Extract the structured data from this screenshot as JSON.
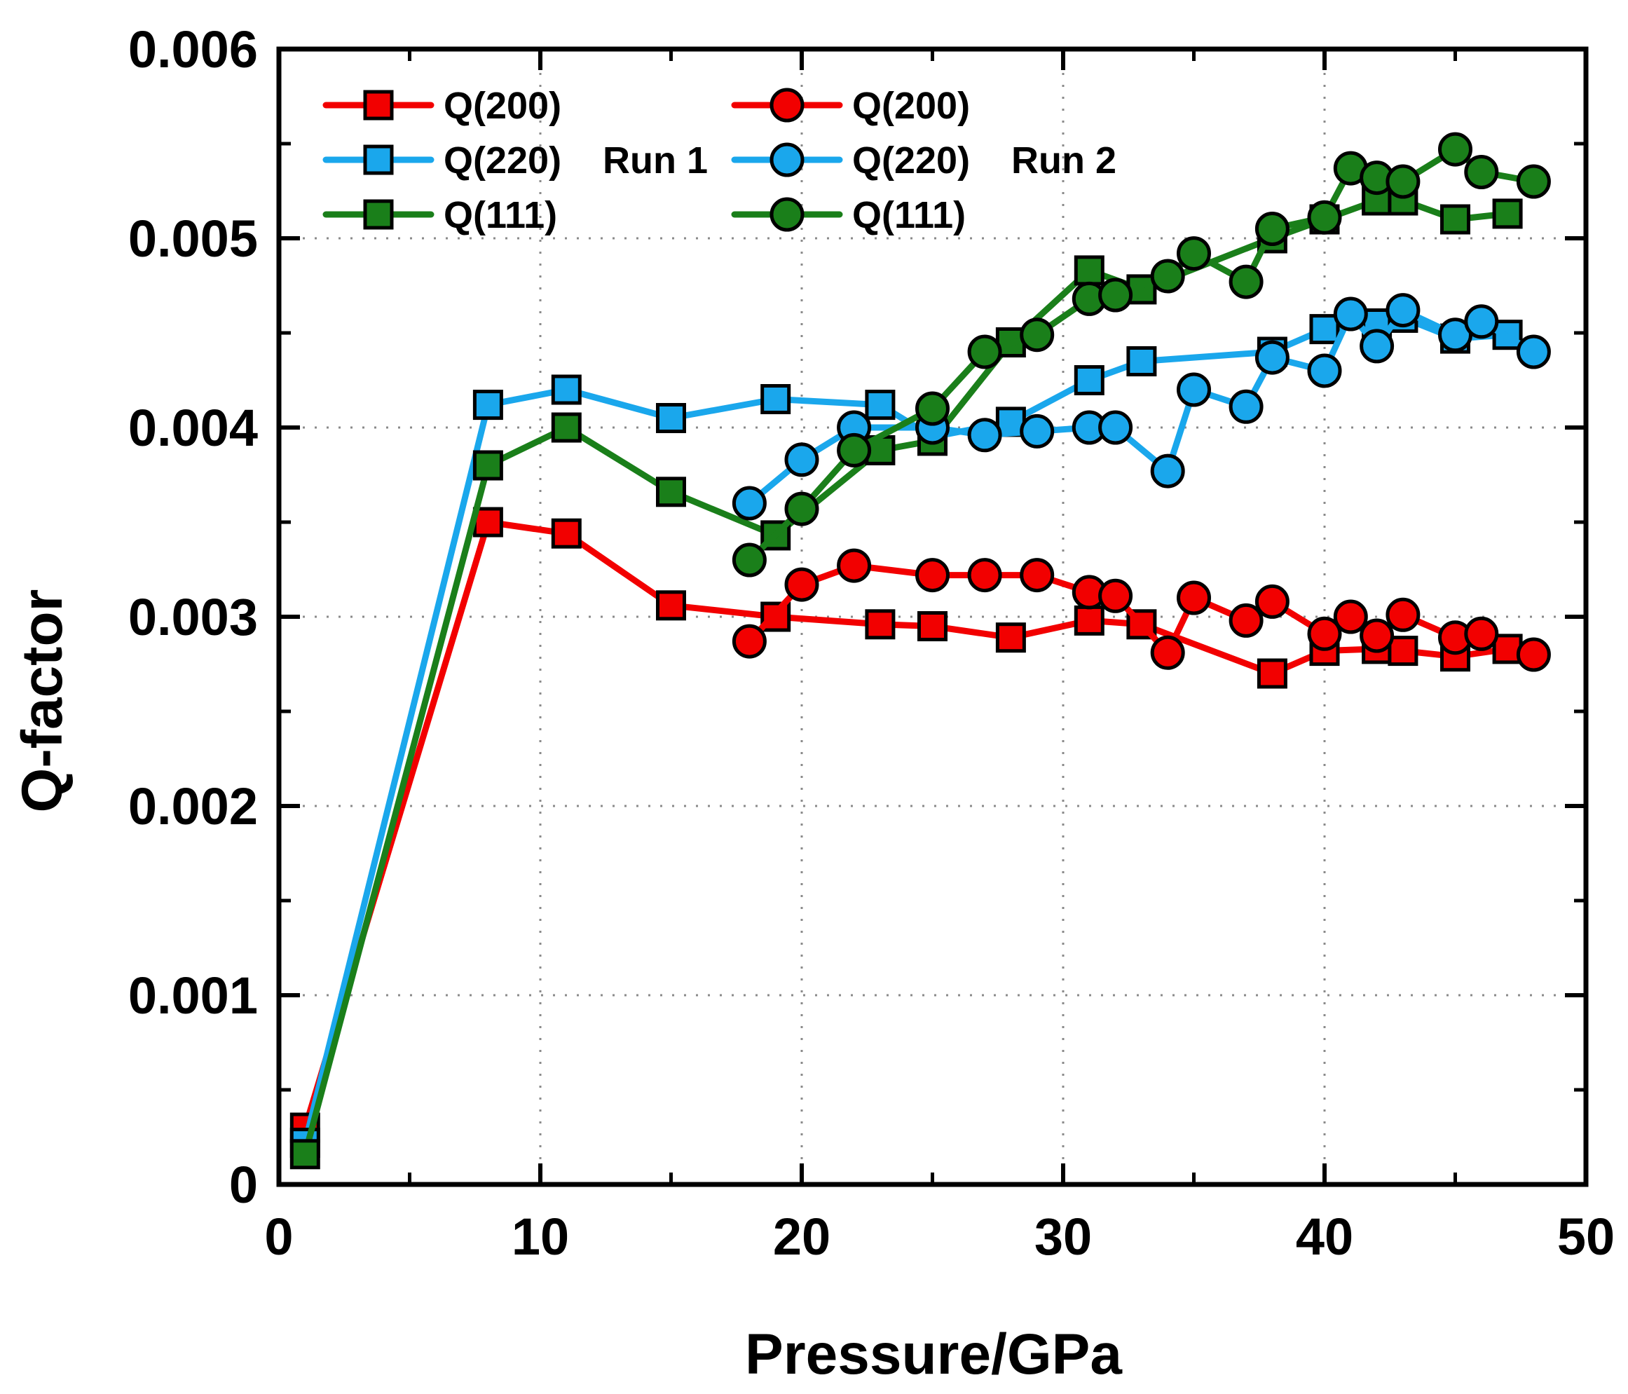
{
  "chart_data": {
    "type": "line",
    "title": "",
    "xlabel": "Pressure/GPa",
    "ylabel": "Q-factor",
    "xlim": [
      0,
      50
    ],
    "ylim": [
      0,
      0.006
    ],
    "xticks": [
      0,
      10,
      20,
      30,
      40,
      50
    ],
    "xtick_labels": [
      "0",
      "10",
      "20",
      "30",
      "40",
      "50"
    ],
    "yticks": [
      0,
      0.001,
      0.002,
      0.003,
      0.004,
      0.005,
      0.006
    ],
    "ytick_labels": [
      "0",
      "0.001",
      "0.002",
      "0.003",
      "0.004",
      "0.005",
      "0.006"
    ],
    "grid": true,
    "legend_position": "top-left",
    "run_labels": [
      "Run 1",
      "Run 2"
    ],
    "colors": {
      "red": "#f20000",
      "blue": "#1aa7ec",
      "green": "#1a7f1a"
    },
    "series": [
      {
        "name": "Q(200)",
        "run": "Run 1",
        "marker": "square",
        "color": "#f20000",
        "x": [
          1,
          8,
          11,
          15,
          19,
          23,
          25,
          28,
          31,
          33,
          38,
          40,
          42,
          43,
          45,
          47
        ],
        "y": [
          0.0003,
          0.0035,
          0.00344,
          0.00306,
          0.003,
          0.00296,
          0.00295,
          0.00289,
          0.00298,
          0.00296,
          0.0027,
          0.00282,
          0.00283,
          0.00282,
          0.00279,
          0.00283
        ]
      },
      {
        "name": "Q(220)",
        "run": "Run 1",
        "marker": "square",
        "color": "#1aa7ec",
        "x": [
          1,
          8,
          11,
          15,
          19,
          23,
          25,
          28,
          31,
          33,
          38,
          40,
          42,
          43,
          45,
          47
        ],
        "y": [
          0.00022,
          0.00412,
          0.0042,
          0.00405,
          0.00415,
          0.00412,
          0.00395,
          0.00403,
          0.00425,
          0.00435,
          0.0044,
          0.00452,
          0.00455,
          0.00458,
          0.00447,
          0.00449
        ]
      },
      {
        "name": "Q(111)",
        "run": "Run 1",
        "marker": "square",
        "color": "#1a7f1a",
        "x": [
          1,
          8,
          11,
          15,
          19,
          23,
          25,
          28,
          31,
          33,
          38,
          40,
          42,
          43,
          45,
          47
        ],
        "y": [
          0.00016,
          0.0038,
          0.004,
          0.00366,
          0.00343,
          0.00388,
          0.00393,
          0.00445,
          0.00483,
          0.00473,
          0.005,
          0.0051,
          0.0052,
          0.0052,
          0.0051,
          0.00513
        ]
      },
      {
        "name": "Q(200)",
        "run": "Run 2",
        "marker": "circle",
        "color": "#f20000",
        "x": [
          18,
          20,
          22,
          25,
          27,
          29,
          31,
          32,
          34,
          35,
          37,
          38,
          40,
          41,
          42,
          43,
          45,
          46,
          48
        ],
        "y": [
          0.00287,
          0.00317,
          0.00327,
          0.00322,
          0.00322,
          0.00322,
          0.00313,
          0.00311,
          0.00281,
          0.0031,
          0.00298,
          0.00308,
          0.00291,
          0.003,
          0.0029,
          0.00301,
          0.00289,
          0.00291,
          0.0028
        ]
      },
      {
        "name": "Q(220)",
        "run": "Run 2",
        "marker": "circle",
        "color": "#1aa7ec",
        "x": [
          18,
          20,
          22,
          25,
          27,
          29,
          31,
          32,
          34,
          35,
          37,
          38,
          40,
          41,
          42,
          43,
          45,
          46,
          48
        ],
        "y": [
          0.0036,
          0.00383,
          0.004,
          0.004,
          0.00396,
          0.00398,
          0.004,
          0.004,
          0.00377,
          0.0042,
          0.00411,
          0.00437,
          0.0043,
          0.0046,
          0.00443,
          0.00462,
          0.00449,
          0.00456,
          0.0044
        ]
      },
      {
        "name": "Q(111)",
        "run": "Run 2",
        "marker": "circle",
        "color": "#1a7f1a",
        "x": [
          18,
          20,
          22,
          25,
          27,
          29,
          31,
          32,
          34,
          35,
          37,
          38,
          40,
          41,
          42,
          43,
          45,
          46,
          48
        ],
        "y": [
          0.0033,
          0.00357,
          0.00388,
          0.0041,
          0.0044,
          0.00449,
          0.00468,
          0.0047,
          0.0048,
          0.00492,
          0.00477,
          0.00505,
          0.00511,
          0.00537,
          0.00532,
          0.0053,
          0.00547,
          0.00535,
          0.0053
        ]
      }
    ]
  }
}
